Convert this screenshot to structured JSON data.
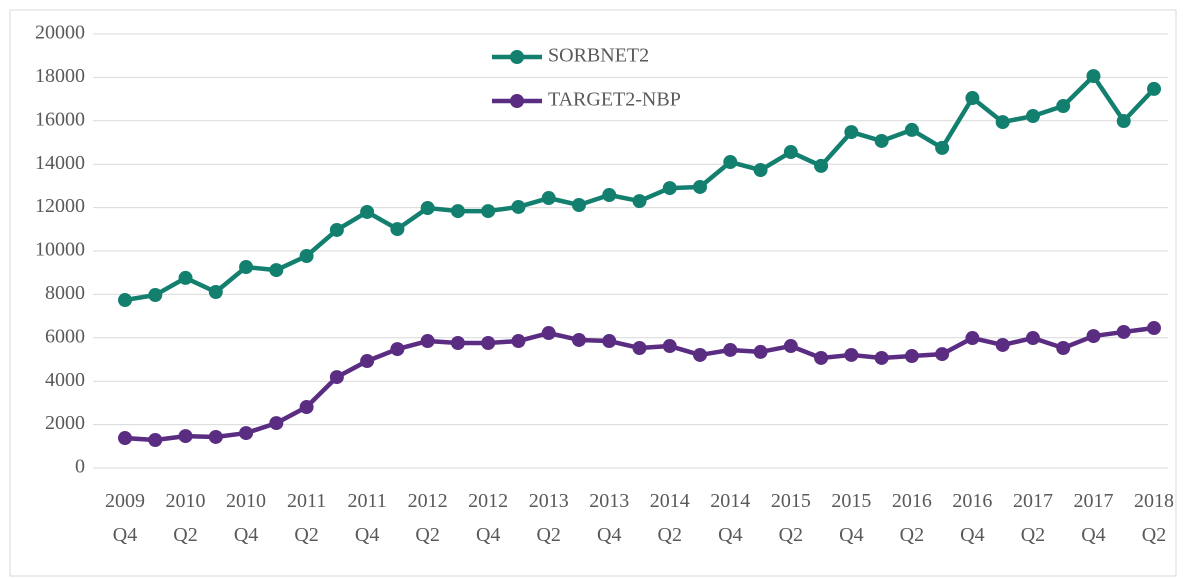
{
  "chart_data": {
    "type": "line",
    "categories": [
      "2009 Q4",
      null,
      "2010 Q2",
      null,
      "2010 Q4",
      null,
      "2011 Q2",
      null,
      "2011 Q4",
      null,
      "2012 Q2",
      null,
      "2012 Q4",
      null,
      "2013 Q2",
      null,
      "2013 Q4",
      null,
      "2014 Q2",
      null,
      "2014 Q4",
      null,
      "2015 Q2",
      null,
      "2015 Q4",
      null,
      "2016 Q2",
      null,
      "2016 Q4",
      null,
      "2017 Q2",
      null,
      "2017 Q4",
      null,
      "2018 Q2"
    ],
    "series": [
      {
        "name": "SORBNET2",
        "color": "#127f6f",
        "values": [
          7740,
          7970,
          8760,
          8110,
          9260,
          9120,
          9770,
          10970,
          11800,
          11010,
          11980,
          11840,
          11840,
          12030,
          12440,
          12120,
          12580,
          12300,
          12900,
          12950,
          14100,
          13730,
          14560,
          13920,
          15480,
          15070,
          15580,
          14750,
          17050,
          15940,
          16220,
          16680,
          18060,
          15990,
          17470
        ]
      },
      {
        "name": "TARGET2-NBP",
        "color": "#5b2d82",
        "values": [
          1380,
          1290,
          1470,
          1430,
          1610,
          2070,
          2810,
          4190,
          4930,
          5480,
          5850,
          5760,
          5760,
          5850,
          6220,
          5900,
          5850,
          5530,
          5620,
          5210,
          5440,
          5350,
          5620,
          5070,
          5210,
          5070,
          5160,
          5250,
          5990,
          5670,
          5990,
          5530,
          6080,
          6270,
          6450
        ]
      }
    ],
    "ylim": [
      0,
      20000
    ],
    "yticks": [
      0,
      2000,
      4000,
      6000,
      8000,
      10000,
      12000,
      14000,
      16000,
      18000,
      20000
    ],
    "grid": true,
    "legend": "top"
  }
}
